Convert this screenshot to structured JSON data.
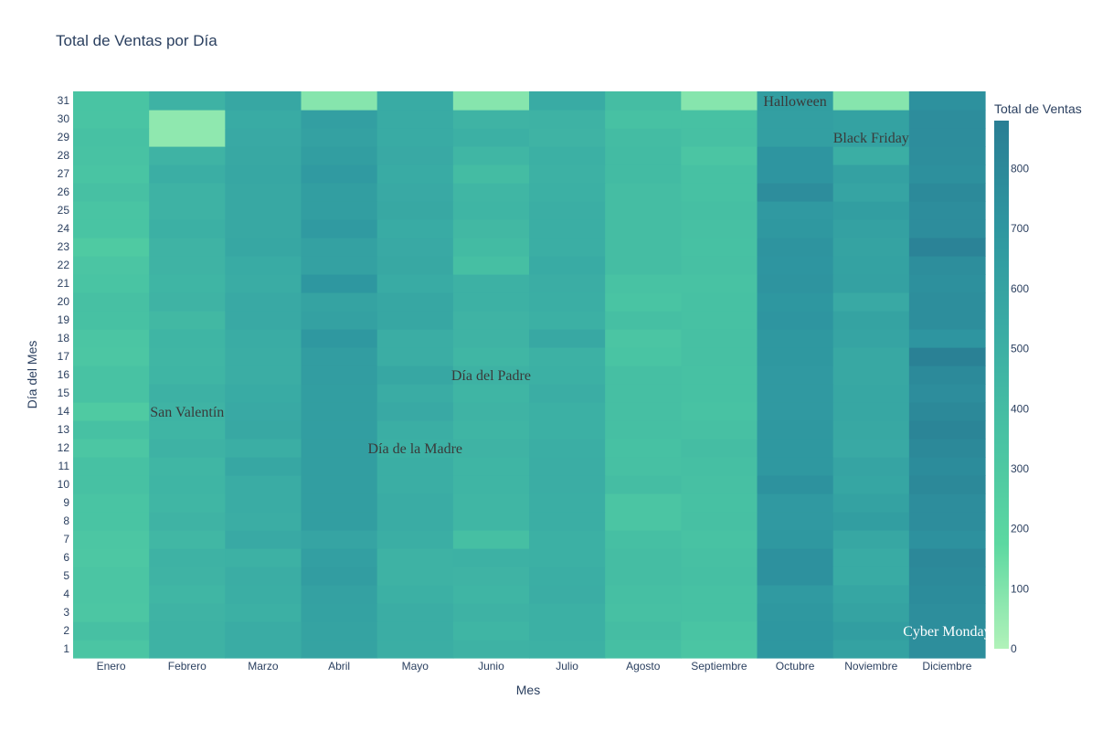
{
  "chart_data": {
    "type": "heatmap",
    "title": "Total de Ventas por Día",
    "xlabel": "Mes",
    "ylabel": "Día del Mes",
    "colorbar_title": "Total de Ventas",
    "colorscale": [
      "#b1f2b9",
      "#5cd8a1",
      "#48c2a3",
      "#3aaca4",
      "#2e96a0",
      "#2a7e94"
    ],
    "zmin": 0,
    "zmax": 880,
    "colorbar_ticks": [
      0,
      100,
      200,
      300,
      400,
      500,
      600,
      700,
      800
    ],
    "months": [
      "Enero",
      "Febrero",
      "Marzo",
      "Abril",
      "Mayo",
      "Junio",
      "Julio",
      "Agosto",
      "Septiembre",
      "Octubre",
      "Noviembre",
      "Diciembre"
    ],
    "days": [
      "1",
      "2",
      "3",
      "4",
      "5",
      "6",
      "7",
      "8",
      "9",
      "10",
      "11",
      "12",
      "13",
      "14",
      "15",
      "16",
      "17",
      "18",
      "19",
      "20",
      "21",
      "22",
      "23",
      "24",
      "25",
      "26",
      "27",
      "28",
      "29",
      "30",
      "31"
    ],
    "values": [
      [
        330,
        480,
        530,
        600,
        510,
        480,
        490,
        380,
        330,
        700,
        610,
        760
      ],
      [
        370,
        480,
        530,
        600,
        520,
        460,
        500,
        390,
        340,
        700,
        640,
        760
      ],
      [
        320,
        470,
        500,
        610,
        520,
        480,
        500,
        370,
        360,
        690,
        600,
        760
      ],
      [
        330,
        450,
        510,
        620,
        500,
        460,
        520,
        380,
        360,
        670,
        580,
        780
      ],
      [
        330,
        470,
        520,
        650,
        480,
        470,
        510,
        390,
        380,
        740,
        540,
        790
      ],
      [
        310,
        480,
        490,
        630,
        480,
        490,
        500,
        390,
        370,
        740,
        540,
        810
      ],
      [
        320,
        440,
        550,
        590,
        510,
        380,
        500,
        380,
        350,
        690,
        570,
        740
      ],
      [
        340,
        470,
        520,
        640,
        530,
        450,
        510,
        330,
        370,
        680,
        640,
        770
      ],
      [
        340,
        450,
        530,
        640,
        530,
        450,
        510,
        330,
        360,
        680,
        610,
        770
      ],
      [
        360,
        460,
        530,
        640,
        510,
        460,
        520,
        390,
        370,
        730,
        580,
        800
      ],
      [
        360,
        450,
        570,
        640,
        510,
        460,
        520,
        370,
        380,
        690,
        590,
        780
      ],
      [
        320,
        480,
        510,
        640,
        500,
        470,
        510,
        360,
        390,
        690,
        550,
        800
      ],
      [
        360,
        460,
        560,
        640,
        510,
        460,
        500,
        380,
        370,
        690,
        560,
        830
      ],
      [
        290,
        470,
        550,
        640,
        550,
        470,
        500,
        380,
        350,
        680,
        570,
        800
      ],
      [
        350,
        490,
        540,
        640,
        530,
        460,
        520,
        380,
        360,
        680,
        570,
        770
      ],
      [
        350,
        460,
        520,
        650,
        570,
        480,
        500,
        380,
        360,
        680,
        560,
        790
      ],
      [
        320,
        450,
        520,
        650,
        520,
        450,
        490,
        340,
        370,
        690,
        560,
        860
      ],
      [
        330,
        460,
        530,
        690,
        520,
        470,
        560,
        330,
        370,
        690,
        590,
        710
      ],
      [
        360,
        430,
        550,
        620,
        570,
        470,
        500,
        380,
        360,
        710,
        600,
        760
      ],
      [
        370,
        470,
        550,
        600,
        570,
        490,
        510,
        340,
        360,
        700,
        550,
        760
      ],
      [
        340,
        460,
        530,
        700,
        540,
        490,
        520,
        350,
        350,
        720,
        620,
        750
      ],
      [
        330,
        470,
        540,
        620,
        560,
        380,
        540,
        390,
        370,
        710,
        610,
        760
      ],
      [
        290,
        470,
        570,
        620,
        550,
        410,
        510,
        390,
        360,
        720,
        600,
        840
      ],
      [
        340,
        500,
        560,
        670,
        540,
        430,
        510,
        390,
        370,
        690,
        620,
        770
      ],
      [
        340,
        480,
        560,
        640,
        560,
        460,
        510,
        390,
        380,
        680,
        640,
        770
      ],
      [
        370,
        480,
        560,
        640,
        550,
        450,
        500,
        390,
        360,
        770,
        590,
        790
      ],
      [
        340,
        510,
        570,
        670,
        540,
        400,
        490,
        410,
        360,
        710,
        620,
        750
      ],
      [
        350,
        470,
        560,
        640,
        550,
        450,
        500,
        410,
        330,
        710,
        510,
        760
      ],
      [
        360,
        70,
        550,
        620,
        540,
        500,
        470,
        400,
        370,
        630,
        610,
        770
      ],
      [
        340,
        70,
        540,
        630,
        540,
        470,
        480,
        360,
        360,
        630,
        610,
        770
      ],
      [
        340,
        480,
        570,
        90,
        540,
        90,
        540,
        390,
        90,
        640,
        90,
        740
      ]
    ],
    "annotations": [
      {
        "text": "San Valentín",
        "month": "Febrero",
        "day": "14"
      },
      {
        "text": "Día de la Madre",
        "month": "Mayo",
        "day": "12"
      },
      {
        "text": "Día del Padre",
        "month": "Junio",
        "day": "16"
      },
      {
        "text": "Halloween",
        "month": "Octubre",
        "day": "31"
      },
      {
        "text": "Black Friday",
        "month": "Noviembre",
        "day": "29"
      },
      {
        "text": "Cyber Monday",
        "month": "Diciembre",
        "day": "2"
      }
    ]
  }
}
